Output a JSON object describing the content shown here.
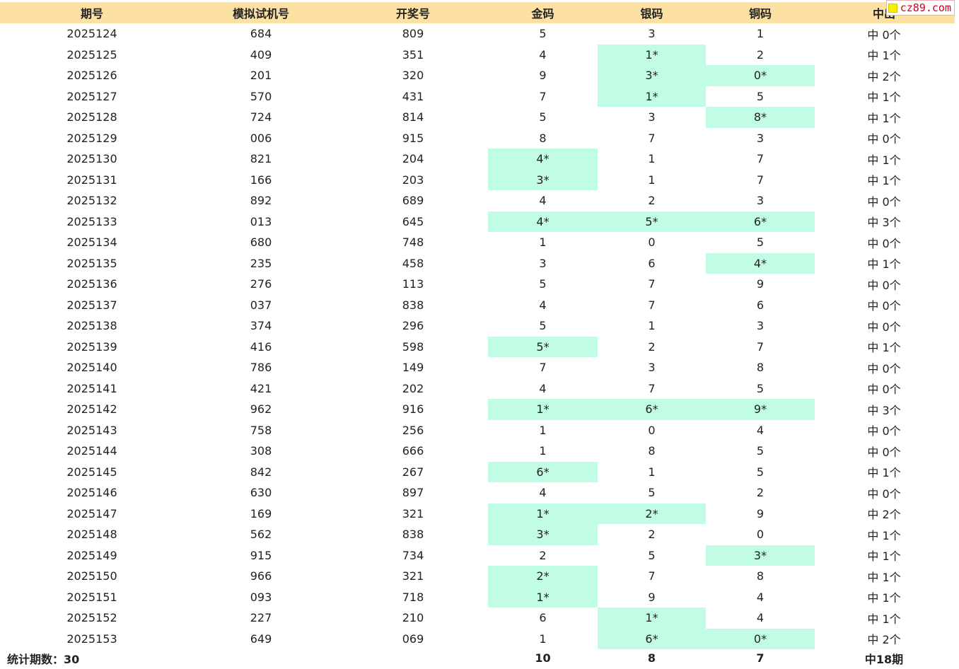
{
  "header": [
    "期号",
    "模拟试机号",
    "开奖号",
    "金码",
    "银码",
    "铜码",
    "中出"
  ],
  "rows": [
    {
      "cells": [
        "2025124",
        "684",
        "809",
        "5",
        "3",
        "1",
        "中 0个"
      ],
      "hits": [
        false,
        false,
        false
      ]
    },
    {
      "cells": [
        "2025125",
        "409",
        "351",
        "4",
        "1*",
        "2",
        "中 1个"
      ],
      "hits": [
        false,
        true,
        false
      ]
    },
    {
      "cells": [
        "2025126",
        "201",
        "320",
        "9",
        "3*",
        "0*",
        "中 2个"
      ],
      "hits": [
        false,
        true,
        true
      ]
    },
    {
      "cells": [
        "2025127",
        "570",
        "431",
        "7",
        "1*",
        "5",
        "中 1个"
      ],
      "hits": [
        false,
        true,
        false
      ]
    },
    {
      "cells": [
        "2025128",
        "724",
        "814",
        "5",
        "3",
        "8*",
        "中 1个"
      ],
      "hits": [
        false,
        false,
        true
      ]
    },
    {
      "cells": [
        "2025129",
        "006",
        "915",
        "8",
        "7",
        "3",
        "中 0个"
      ],
      "hits": [
        false,
        false,
        false
      ]
    },
    {
      "cells": [
        "2025130",
        "821",
        "204",
        "4*",
        "1",
        "7",
        "中 1个"
      ],
      "hits": [
        true,
        false,
        false
      ]
    },
    {
      "cells": [
        "2025131",
        "166",
        "203",
        "3*",
        "1",
        "7",
        "中 1个"
      ],
      "hits": [
        true,
        false,
        false
      ]
    },
    {
      "cells": [
        "2025132",
        "892",
        "689",
        "4",
        "2",
        "3",
        "中 0个"
      ],
      "hits": [
        false,
        false,
        false
      ]
    },
    {
      "cells": [
        "2025133",
        "013",
        "645",
        "4*",
        "5*",
        "6*",
        "中 3个"
      ],
      "hits": [
        true,
        true,
        true
      ]
    },
    {
      "cells": [
        "2025134",
        "680",
        "748",
        "1",
        "0",
        "5",
        "中 0个"
      ],
      "hits": [
        false,
        false,
        false
      ]
    },
    {
      "cells": [
        "2025135",
        "235",
        "458",
        "3",
        "6",
        "4*",
        "中 1个"
      ],
      "hits": [
        false,
        false,
        true
      ]
    },
    {
      "cells": [
        "2025136",
        "276",
        "113",
        "5",
        "7",
        "9",
        "中 0个"
      ],
      "hits": [
        false,
        false,
        false
      ]
    },
    {
      "cells": [
        "2025137",
        "037",
        "838",
        "4",
        "7",
        "6",
        "中 0个"
      ],
      "hits": [
        false,
        false,
        false
      ]
    },
    {
      "cells": [
        "2025138",
        "374",
        "296",
        "5",
        "1",
        "3",
        "中 0个"
      ],
      "hits": [
        false,
        false,
        false
      ]
    },
    {
      "cells": [
        "2025139",
        "416",
        "598",
        "5*",
        "2",
        "7",
        "中 1个"
      ],
      "hits": [
        true,
        false,
        false
      ]
    },
    {
      "cells": [
        "2025140",
        "786",
        "149",
        "7",
        "3",
        "8",
        "中 0个"
      ],
      "hits": [
        false,
        false,
        false
      ]
    },
    {
      "cells": [
        "2025141",
        "421",
        "202",
        "4",
        "7",
        "5",
        "中 0个"
      ],
      "hits": [
        false,
        false,
        false
      ]
    },
    {
      "cells": [
        "2025142",
        "962",
        "916",
        "1*",
        "6*",
        "9*",
        "中 3个"
      ],
      "hits": [
        true,
        true,
        true
      ]
    },
    {
      "cells": [
        "2025143",
        "758",
        "256",
        "1",
        "0",
        "4",
        "中 0个"
      ],
      "hits": [
        false,
        false,
        false
      ]
    },
    {
      "cells": [
        "2025144",
        "308",
        "666",
        "1",
        "8",
        "5",
        "中 0个"
      ],
      "hits": [
        false,
        false,
        false
      ]
    },
    {
      "cells": [
        "2025145",
        "842",
        "267",
        "6*",
        "1",
        "5",
        "中 1个"
      ],
      "hits": [
        true,
        false,
        false
      ]
    },
    {
      "cells": [
        "2025146",
        "630",
        "897",
        "4",
        "5",
        "2",
        "中 0个"
      ],
      "hits": [
        false,
        false,
        false
      ]
    },
    {
      "cells": [
        "2025147",
        "169",
        "321",
        "1*",
        "2*",
        "9",
        "中 2个"
      ],
      "hits": [
        true,
        true,
        false
      ]
    },
    {
      "cells": [
        "2025148",
        "562",
        "838",
        "3*",
        "2",
        "0",
        "中 1个"
      ],
      "hits": [
        true,
        false,
        false
      ]
    },
    {
      "cells": [
        "2025149",
        "915",
        "734",
        "2",
        "5",
        "3*",
        "中 1个"
      ],
      "hits": [
        false,
        false,
        true
      ]
    },
    {
      "cells": [
        "2025150",
        "966",
        "321",
        "2*",
        "7",
        "8",
        "中 1个"
      ],
      "hits": [
        true,
        false,
        false
      ]
    },
    {
      "cells": [
        "2025151",
        "093",
        "718",
        "1*",
        "9",
        "4",
        "中 1个"
      ],
      "hits": [
        true,
        false,
        false
      ]
    },
    {
      "cells": [
        "2025152",
        "227",
        "210",
        "6",
        "1*",
        "4",
        "中 1个"
      ],
      "hits": [
        false,
        true,
        false
      ]
    },
    {
      "cells": [
        "2025153",
        "649",
        "069",
        "1",
        "6*",
        "0*",
        "中 2个"
      ],
      "hits": [
        false,
        true,
        true
      ]
    }
  ],
  "footer": {
    "label": "统计期数：30",
    "gold": "10",
    "silver": "8",
    "bronze": "7",
    "total": "中18期"
  },
  "watermark": {
    "text": "cz89.com"
  },
  "colors": {
    "header_bg": "#fde1a3",
    "hit_bg": "#c1fde4",
    "watermark_text": "#d0021b"
  }
}
